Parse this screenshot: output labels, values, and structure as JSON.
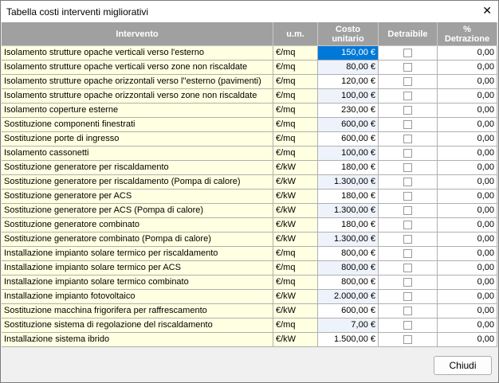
{
  "window": {
    "title": "Tabella costi interventi migliorativi",
    "close": "✕"
  },
  "table": {
    "headers": [
      "Intervento",
      "u.m.",
      "Costo unitario",
      "Detraibile",
      "% Detrazione"
    ],
    "rows": [
      [
        "Isolamento strutture opache verticali verso l'esterno",
        "€/mq",
        "150,00 €",
        "0,00"
      ],
      [
        "Isolamento strutture opache verticali verso zone non riscaldate",
        "€/mq",
        "80,00 €",
        "0,00"
      ],
      [
        "Isolamento strutture opache orizzontali verso l''esterno (pavimenti)",
        "€/mq",
        "120,00 €",
        "0,00"
      ],
      [
        "Isolamento strutture opache orizzontali verso zone non riscaldate",
        "€/mq",
        "100,00 €",
        "0,00"
      ],
      [
        "Isolamento coperture esterne",
        "€/mq",
        "230,00 €",
        "0,00"
      ],
      [
        "Sostituzione componenti finestrati",
        "€/mq",
        "600,00 €",
        "0,00"
      ],
      [
        "Sostituzione porte di ingresso",
        "€/mq",
        "600,00 €",
        "0,00"
      ],
      [
        "Isolamento cassonetti",
        "€/mq",
        "100,00 €",
        "0,00"
      ],
      [
        "Sostituzione generatore per riscaldamento",
        "€/kW",
        "180,00 €",
        "0,00"
      ],
      [
        "Sostituzione generatore per riscaldamento (Pompa di calore)",
        "€/kW",
        "1.300,00 €",
        "0,00"
      ],
      [
        "Sostituzione generatore per ACS",
        "€/kW",
        "180,00 €",
        "0,00"
      ],
      [
        "Sostituzione generatore per ACS (Pompa di calore)",
        "€/kW",
        "1.300,00 €",
        "0,00"
      ],
      [
        "Sostituzione generatore combinato",
        "€/kW",
        "180,00 €",
        "0,00"
      ],
      [
        "Sostituzione generatore combinato (Pompa di calore)",
        "€/kW",
        "1.300,00 €",
        "0,00"
      ],
      [
        "Installazione impianto solare termico per riscaldamento",
        "€/mq",
        "800,00 €",
        "0,00"
      ],
      [
        "Installazione impianto solare termico per ACS",
        "€/mq",
        "800,00 €",
        "0,00"
      ],
      [
        "Installazione impianto solare termico combinato",
        "€/mq",
        "800,00 €",
        "0,00"
      ],
      [
        "Installazione impianto fotovoltaico",
        "€/kW",
        "2.000,00 €",
        "0,00"
      ],
      [
        "Sostituzione macchina frigorifera per raffrescamento",
        "€/kW",
        "600,00 €",
        "0,00"
      ],
      [
        "Sostituzione sistema di regolazione del riscaldamento",
        "€/mq",
        "7,00 €",
        "0,00"
      ],
      [
        "Installazione sistema ibrido",
        "€/kW",
        "1.500,00 €",
        "0,00"
      ]
    ]
  },
  "footer": {
    "button": "Chiudi"
  }
}
